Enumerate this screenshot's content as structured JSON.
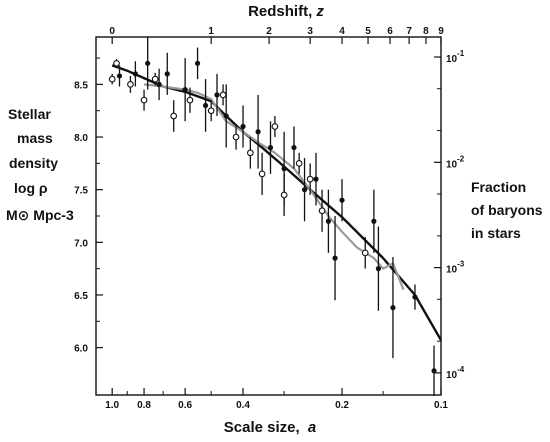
{
  "chart_data": {
    "type": "scatter",
    "title": "",
    "top_axis": {
      "label": "Redshift,",
      "symbol": "z",
      "ticks": [
        {
          "z": 0,
          "label": "0"
        },
        {
          "z": 1,
          "label": "1"
        },
        {
          "z": 2,
          "label": "2"
        },
        {
          "z": 3,
          "label": "3"
        },
        {
          "z": 4,
          "label": "4"
        },
        {
          "z": 5,
          "label": "5"
        },
        {
          "z": 6,
          "label": "6"
        },
        {
          "z": 7,
          "label": "7"
        },
        {
          "z": 8,
          "label": "8"
        },
        {
          "z": 9,
          "label": "9"
        }
      ]
    },
    "x_axis": {
      "label": "Scale size,",
      "symbol": "a",
      "scale": "log",
      "reversed": true,
      "xlim": [
        1.12,
        0.1
      ],
      "ticks": [
        {
          "value": 1.0,
          "label": "1.0"
        },
        {
          "value": 0.8,
          "label": "0.8"
        },
        {
          "value": 0.6,
          "label": "0.6"
        },
        {
          "value": 0.4,
          "label": "0.4"
        },
        {
          "value": 0.2,
          "label": "0.2"
        },
        {
          "value": 0.1,
          "label": "0.1"
        }
      ]
    },
    "y_axis": {
      "label_lines": [
        "Stellar",
        "mass",
        "density",
        "log ρ",
        "M⊙ Mpc-3"
      ],
      "ylim": [
        5.55,
        8.95
      ],
      "ticks": [
        {
          "value": 6.0,
          "label": "6.0"
        },
        {
          "value": 6.5,
          "label": "6.5"
        },
        {
          "value": 7.0,
          "label": "7.0"
        },
        {
          "value": 7.5,
          "label": "7.5"
        },
        {
          "value": 8.0,
          "label": "8.0"
        },
        {
          "value": 8.5,
          "label": "8.5"
        }
      ]
    },
    "right_axis": {
      "label_lines": [
        "Fraction",
        "of baryons",
        "in stars"
      ],
      "scale": "log",
      "ticks": [
        {
          "value": 0.1,
          "base": "10",
          "exp": "-1"
        },
        {
          "value": 0.01,
          "base": "10",
          "exp": "-2"
        },
        {
          "value": 0.001,
          "base": "10",
          "exp": "-3"
        },
        {
          "value": 0.0001,
          "base": "10",
          "exp": "-4"
        }
      ]
    },
    "series": [
      {
        "marker": "filled",
        "color": "#111111",
        "points": [
          {
            "a": 0.95,
            "y": 8.58,
            "err": 0.1
          },
          {
            "a": 0.85,
            "y": 8.6,
            "err": 0.12
          },
          {
            "a": 0.78,
            "y": 8.7,
            "err": 0.25
          },
          {
            "a": 0.72,
            "y": 8.5,
            "err": 0.15
          },
          {
            "a": 0.68,
            "y": 8.6,
            "err": 0.2
          },
          {
            "a": 0.6,
            "y": 8.45,
            "err": 0.3
          },
          {
            "a": 0.55,
            "y": 8.7,
            "err": 0.15
          },
          {
            "a": 0.52,
            "y": 8.3,
            "err": 0.25
          },
          {
            "a": 0.48,
            "y": 8.4,
            "err": 0.2
          },
          {
            "a": 0.45,
            "y": 8.2,
            "err": 0.3
          },
          {
            "a": 0.4,
            "y": 8.1,
            "err": 0.2
          },
          {
            "a": 0.36,
            "y": 8.05,
            "err": 0.35
          },
          {
            "a": 0.33,
            "y": 7.9,
            "err": 0.25
          },
          {
            "a": 0.3,
            "y": 7.7,
            "err": 0.35
          },
          {
            "a": 0.28,
            "y": 7.9,
            "err": 0.2
          },
          {
            "a": 0.26,
            "y": 7.5,
            "err": 0.3
          },
          {
            "a": 0.24,
            "y": 7.6,
            "err": 0.25
          },
          {
            "a": 0.22,
            "y": 7.2,
            "err": 0.3
          },
          {
            "a": 0.21,
            "y": 6.85,
            "err": 0.4
          },
          {
            "a": 0.2,
            "y": 7.4,
            "err": 0.2
          },
          {
            "a": 0.16,
            "y": 7.2,
            "err": 0.3
          },
          {
            "a": 0.155,
            "y": 6.75,
            "err": 0.4
          },
          {
            "a": 0.14,
            "y": 6.38,
            "err": 0.48
          },
          {
            "a": 0.12,
            "y": 6.48,
            "err": 0.12
          },
          {
            "a": 0.105,
            "y": 5.78,
            "err": 0.24
          }
        ]
      },
      {
        "marker": "open",
        "color": "#111111",
        "points": [
          {
            "a": 1.0,
            "y": 8.55,
            "err": 0.05
          },
          {
            "a": 0.97,
            "y": 8.7,
            "err": 0.04
          },
          {
            "a": 0.88,
            "y": 8.5,
            "err": 0.08
          },
          {
            "a": 0.8,
            "y": 8.35,
            "err": 0.1
          },
          {
            "a": 0.74,
            "y": 8.55,
            "err": 0.06
          },
          {
            "a": 0.65,
            "y": 8.2,
            "err": 0.15
          },
          {
            "a": 0.58,
            "y": 8.35,
            "err": 0.12
          },
          {
            "a": 0.5,
            "y": 8.25,
            "err": 0.1
          },
          {
            "a": 0.46,
            "y": 8.4,
            "err": 0.1
          },
          {
            "a": 0.42,
            "y": 8.0,
            "err": 0.12
          },
          {
            "a": 0.38,
            "y": 7.85,
            "err": 0.15
          },
          {
            "a": 0.35,
            "y": 7.65,
            "err": 0.2
          },
          {
            "a": 0.32,
            "y": 8.1,
            "err": 0.1
          },
          {
            "a": 0.3,
            "y": 7.45,
            "err": 0.2
          },
          {
            "a": 0.27,
            "y": 7.75,
            "err": 0.1
          },
          {
            "a": 0.25,
            "y": 7.6,
            "err": 0.15
          },
          {
            "a": 0.23,
            "y": 7.3,
            "err": 0.2
          },
          {
            "a": 0.17,
            "y": 6.9,
            "err": 0.15
          }
        ]
      }
    ],
    "curves": [
      {
        "color": "#111111",
        "width": 2.4,
        "points": [
          [
            1.0,
            8.68
          ],
          [
            0.9,
            8.63
          ],
          [
            0.8,
            8.56
          ],
          [
            0.7,
            8.48
          ],
          [
            0.6,
            8.43
          ],
          [
            0.5,
            8.34
          ],
          [
            0.45,
            8.2
          ],
          [
            0.4,
            8.05
          ],
          [
            0.35,
            7.9
          ],
          [
            0.3,
            7.72
          ],
          [
            0.25,
            7.5
          ],
          [
            0.2,
            7.24
          ],
          [
            0.15,
            6.85
          ],
          [
            0.12,
            6.5
          ],
          [
            0.1,
            6.07
          ]
        ]
      },
      {
        "color": "#9a9a9a",
        "width": 2.2,
        "points": [
          [
            0.8,
            8.5
          ],
          [
            0.7,
            8.48
          ],
          [
            0.6,
            8.45
          ],
          [
            0.55,
            8.42
          ],
          [
            0.5,
            8.36
          ],
          [
            0.45,
            8.15
          ],
          [
            0.4,
            8.05
          ],
          [
            0.36,
            7.95
          ],
          [
            0.32,
            7.85
          ],
          [
            0.28,
            7.7
          ],
          [
            0.25,
            7.5
          ],
          [
            0.22,
            7.25
          ],
          [
            0.2,
            7.1
          ],
          [
            0.18,
            6.95
          ],
          [
            0.16,
            6.85
          ],
          [
            0.15,
            6.75
          ],
          [
            0.14,
            6.8
          ],
          [
            0.13,
            6.55
          ]
        ]
      }
    ]
  }
}
